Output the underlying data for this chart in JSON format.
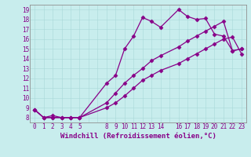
{
  "xlabel": "Windchill (Refroidissement éolien,°C)",
  "background_color": "#c8eded",
  "line_color": "#880088",
  "grid_color": "#a8d8d8",
  "ylim": [
    7.5,
    19.5
  ],
  "xlim": [
    -0.5,
    23.5
  ],
  "yticks": [
    8,
    9,
    10,
    11,
    12,
    13,
    14,
    15,
    16,
    17,
    18,
    19
  ],
  "xticks": [
    0,
    1,
    2,
    3,
    4,
    5,
    8,
    9,
    10,
    11,
    12,
    13,
    14,
    16,
    17,
    18,
    19,
    20,
    21,
    22,
    23
  ],
  "line1_x": [
    0,
    1,
    2,
    3,
    4,
    5,
    8,
    9,
    10,
    11,
    12,
    13,
    14,
    16,
    17,
    18,
    19,
    20,
    21,
    22,
    23
  ],
  "line1_y": [
    8.8,
    8.0,
    8.0,
    8.0,
    8.0,
    8.0,
    9.0,
    9.5,
    10.2,
    11.0,
    11.8,
    12.3,
    12.8,
    13.5,
    14.0,
    14.5,
    15.0,
    15.5,
    16.0,
    16.2,
    14.5
  ],
  "line2_x": [
    0,
    1,
    2,
    3,
    4,
    5,
    8,
    9,
    10,
    11,
    12,
    13,
    14,
    16,
    17,
    18,
    19,
    20,
    21,
    22,
    23
  ],
  "line2_y": [
    8.8,
    8.0,
    8.0,
    8.0,
    8.0,
    8.0,
    9.5,
    10.5,
    11.5,
    12.3,
    13.0,
    13.8,
    14.3,
    15.2,
    15.8,
    16.3,
    16.8,
    17.3,
    17.8,
    14.8,
    15.0
  ],
  "line3_x": [
    0,
    1,
    2,
    3,
    4,
    5,
    8,
    9,
    10,
    11,
    12,
    13,
    14,
    16,
    17,
    18,
    19,
    20,
    21,
    22,
    23
  ],
  "line3_y": [
    8.8,
    8.0,
    8.2,
    8.0,
    8.0,
    8.0,
    11.5,
    12.3,
    15.0,
    16.3,
    18.2,
    17.8,
    17.2,
    19.0,
    18.3,
    18.0,
    18.1,
    16.5,
    16.3,
    14.8,
    15.0
  ],
  "marker": "D",
  "markersize": 2.5,
  "linewidth": 0.9,
  "tick_fontsize": 5.5,
  "label_fontsize": 6.5
}
